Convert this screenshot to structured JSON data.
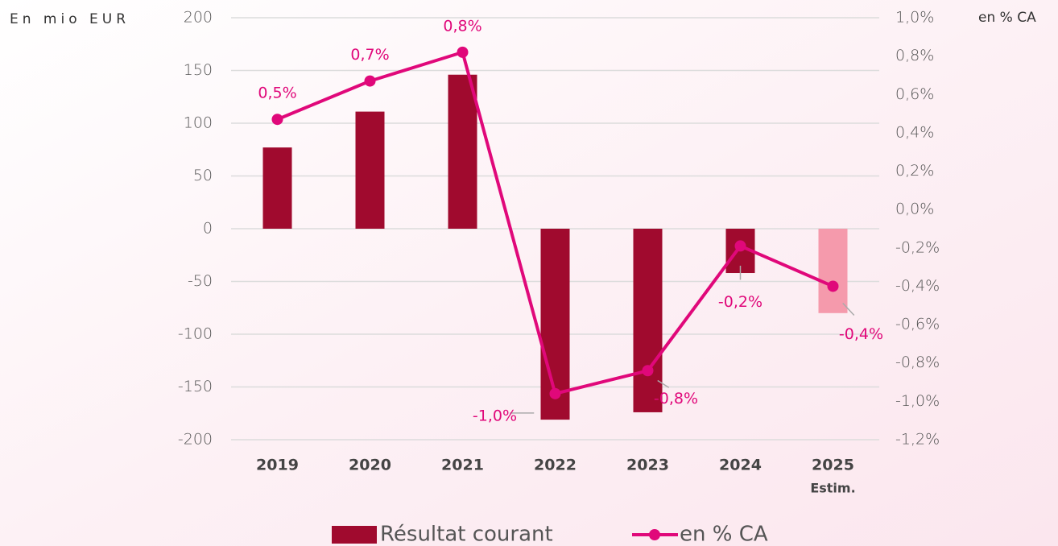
{
  "chart_data": {
    "type": "bar",
    "y_label": "En mio EUR",
    "y2_label": "en % CA",
    "categories": [
      "2019",
      "2020",
      "2021",
      "2022",
      "2023",
      "2024",
      "2025"
    ],
    "annotations": [
      "Estim."
    ],
    "series": [
      {
        "name": "Résultat courant",
        "type": "bar",
        "color": "#a00a2e",
        "colors": [
          "#a00a2e",
          "#a00a2e",
          "#a00a2e",
          "#a00a2e",
          "#a00a2e",
          "#a00a2e",
          "#f59aac"
        ],
        "values": [
          77,
          111,
          146,
          -181,
          -174,
          -42,
          -80
        ]
      },
      {
        "name": "en % CA",
        "type": "line",
        "axis": "y2",
        "color": "#e0087a",
        "values": [
          0.47,
          0.67,
          0.82,
          -0.96,
          -0.84,
          -0.19,
          -0.4
        ],
        "value_labels": [
          "0,5%",
          "0,7%",
          "0,8%",
          "-1,0%",
          "-0,8%",
          "-0,2%",
          "-0,4%"
        ]
      }
    ],
    "ylim": [
      -200,
      200
    ],
    "yticks": [
      200,
      150,
      100,
      50,
      0,
      -50,
      -100,
      -150,
      -200
    ],
    "y2lim": [
      -1.2,
      1.0
    ],
    "y2ticks": [
      {
        "value": 1.0,
        "label": "1,0%"
      },
      {
        "value": 0.8,
        "label": "0,8%"
      },
      {
        "value": 0.6,
        "label": "0,6%"
      },
      {
        "value": 0.4,
        "label": "0,4%"
      },
      {
        "value": 0.2,
        "label": "0,2%"
      },
      {
        "value": 0.0,
        "label": "0,0%"
      },
      {
        "value": -0.2,
        "label": "-0,2%"
      },
      {
        "value": -0.4,
        "label": "-0,4%"
      },
      {
        "value": -0.6,
        "label": "-0,6%"
      },
      {
        "value": -0.8,
        "label": "-0,8%"
      },
      {
        "value": -1.0,
        "label": "-1,0%"
      },
      {
        "value": -1.2,
        "label": "-1,2%"
      }
    ],
    "grid": true
  }
}
